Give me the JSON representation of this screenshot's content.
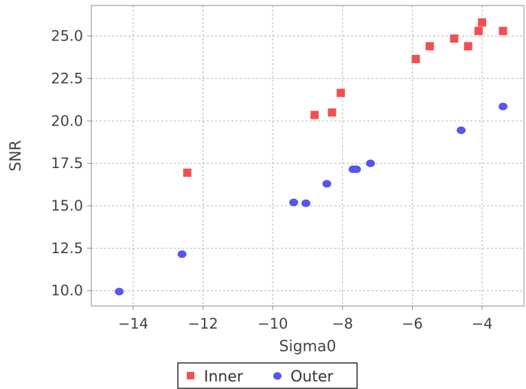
{
  "chart_data": {
    "type": "scatter",
    "xlabel": "Sigma0",
    "ylabel": "SNR",
    "xlim": [
      -15.2,
      -2.8
    ],
    "ylim": [
      9.1,
      26.8
    ],
    "xticks": [
      -14,
      -12,
      -10,
      -8,
      -6,
      -4
    ],
    "yticks": [
      10.0,
      12.5,
      15.0,
      17.5,
      20.0,
      22.5,
      25.0
    ],
    "grid": true,
    "legend_position": "bottom",
    "series": [
      {
        "name": "Inner",
        "marker": "square",
        "color": "#f05050",
        "points": [
          [
            -12.45,
            16.95
          ],
          [
            -8.8,
            20.35
          ],
          [
            -8.3,
            20.5
          ],
          [
            -8.05,
            21.65
          ],
          [
            -5.9,
            23.65
          ],
          [
            -5.5,
            24.4
          ],
          [
            -4.8,
            24.85
          ],
          [
            -4.4,
            24.4
          ],
          [
            -4.1,
            25.3
          ],
          [
            -4.0,
            25.8
          ],
          [
            -3.4,
            25.3
          ]
        ]
      },
      {
        "name": "Outer",
        "marker": "circle",
        "color": "#5555f0",
        "points": [
          [
            -14.4,
            9.95
          ],
          [
            -12.6,
            12.15
          ],
          [
            -9.4,
            15.2
          ],
          [
            -9.05,
            15.15
          ],
          [
            -8.45,
            16.3
          ],
          [
            -7.7,
            17.15
          ],
          [
            -7.6,
            17.15
          ],
          [
            -7.2,
            17.5
          ],
          [
            -4.6,
            19.45
          ],
          [
            -3.4,
            20.85
          ]
        ]
      }
    ]
  }
}
